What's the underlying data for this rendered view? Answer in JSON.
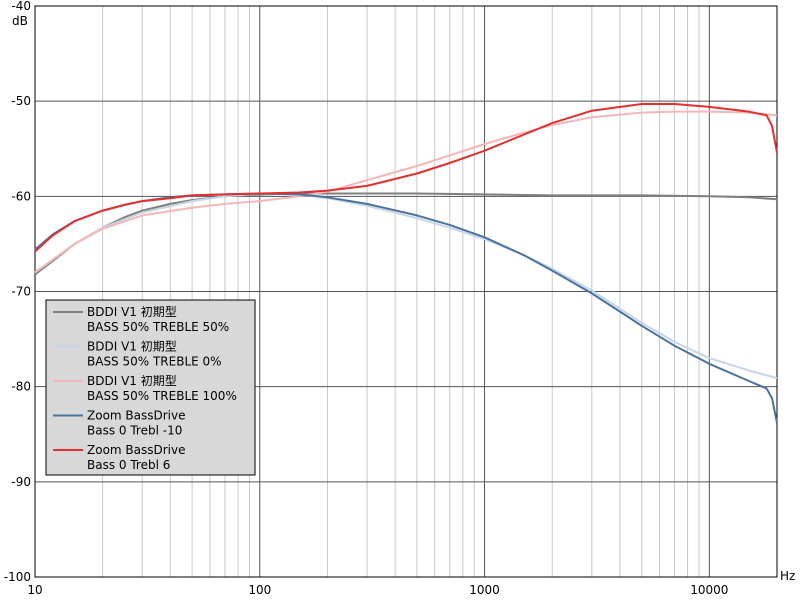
{
  "chart_data": {
    "type": "line",
    "x_scale": "log",
    "y_unit_label": "dB",
    "x_unit_label": "Hz",
    "xlim": [
      10,
      20000
    ],
    "ylim": [
      -100,
      -40
    ],
    "y_ticks": [
      -100,
      -90,
      -80,
      -70,
      -60,
      -50,
      -40
    ],
    "x_tick_labels": [
      {
        "value": 10,
        "label": "10"
      },
      {
        "value": 100,
        "label": "100"
      },
      {
        "value": 1000,
        "label": "1000"
      },
      {
        "value": 10000,
        "label": "10000"
      }
    ],
    "grid": true,
    "legend_position": "bottom-left",
    "series": [
      {
        "name_line1": "BDDI V1 初期型",
        "name_line2": "BASS 50% TREBLE 50%",
        "color": "#7f7f7f",
        "x": [
          10,
          12,
          15,
          20,
          25,
          30,
          40,
          50,
          70,
          100,
          150,
          200,
          300,
          500,
          1000,
          2000,
          5000,
          10000,
          15000,
          20000
        ],
        "y": [
          -68.2,
          -66.8,
          -65.0,
          -63.3,
          -62.2,
          -61.5,
          -60.8,
          -60.4,
          -60.0,
          -59.8,
          -59.7,
          -59.7,
          -59.7,
          -59.7,
          -59.8,
          -59.9,
          -59.9,
          -60.0,
          -60.1,
          -60.3
        ]
      },
      {
        "name_line1": "BDDI V1 初期型",
        "name_line2": "BASS 50% TREBLE 0%",
        "color": "#c6d6e6",
        "x": [
          10,
          15,
          20,
          30,
          50,
          70,
          100,
          150,
          200,
          300,
          500,
          700,
          1000,
          1500,
          2000,
          3000,
          5000,
          7000,
          10000,
          15000,
          20000
        ],
        "y": [
          -68.0,
          -65.0,
          -63.3,
          -61.7,
          -60.5,
          -60.0,
          -59.7,
          -59.8,
          -60.2,
          -61.0,
          -62.3,
          -63.3,
          -64.5,
          -66.2,
          -67.6,
          -69.9,
          -73.3,
          -75.3,
          -77.0,
          -78.3,
          -79.1
        ]
      },
      {
        "name_line1": "BDDI V1 初期型",
        "name_line2": "BASS 50% TREBLE 100%",
        "color": "#f4b6b6",
        "x": [
          10,
          15,
          20,
          30,
          50,
          70,
          100,
          150,
          200,
          300,
          500,
          700,
          1000,
          1500,
          2000,
          3000,
          5000,
          7000,
          10000,
          15000,
          20000
        ],
        "y": [
          -68.0,
          -65.0,
          -63.4,
          -62.0,
          -61.2,
          -60.8,
          -60.5,
          -60.0,
          -59.5,
          -58.3,
          -56.8,
          -55.7,
          -54.5,
          -53.3,
          -52.5,
          -51.7,
          -51.2,
          -51.1,
          -51.1,
          -51.2,
          -51.5
        ]
      },
      {
        "name_line1": "Zoom BassDrive",
        "name_line2": "Bass 0 Trebl -10",
        "color": "#4a72a0",
        "x": [
          10,
          12,
          15,
          20,
          25,
          30,
          40,
          50,
          70,
          100,
          150,
          200,
          300,
          500,
          700,
          1000,
          1500,
          2000,
          3000,
          5000,
          7000,
          10000,
          15000,
          18000,
          19000,
          20000
        ],
        "y": [
          -65.6,
          -64.0,
          -62.6,
          -61.5,
          -60.9,
          -60.5,
          -60.1,
          -59.9,
          -59.8,
          -59.7,
          -59.8,
          -60.1,
          -60.8,
          -62.0,
          -63.0,
          -64.3,
          -66.2,
          -67.8,
          -70.2,
          -73.6,
          -75.7,
          -77.6,
          -79.4,
          -80.2,
          -81.2,
          -83.8
        ]
      },
      {
        "name_line1": "Zoom BassDrive",
        "name_line2": "Bass 0 Trebl 6",
        "color": "#e03030",
        "x": [
          10,
          12,
          15,
          20,
          25,
          30,
          40,
          50,
          70,
          100,
          150,
          200,
          300,
          500,
          700,
          1000,
          1500,
          2000,
          3000,
          5000,
          7000,
          10000,
          15000,
          18000,
          19000,
          20000
        ],
        "y": [
          -65.8,
          -64.1,
          -62.6,
          -61.5,
          -60.9,
          -60.5,
          -60.2,
          -59.9,
          -59.8,
          -59.7,
          -59.6,
          -59.4,
          -58.9,
          -57.6,
          -56.5,
          -55.2,
          -53.5,
          -52.3,
          -51.0,
          -50.3,
          -50.3,
          -50.6,
          -51.1,
          -51.5,
          -52.6,
          -55.4
        ]
      }
    ]
  }
}
